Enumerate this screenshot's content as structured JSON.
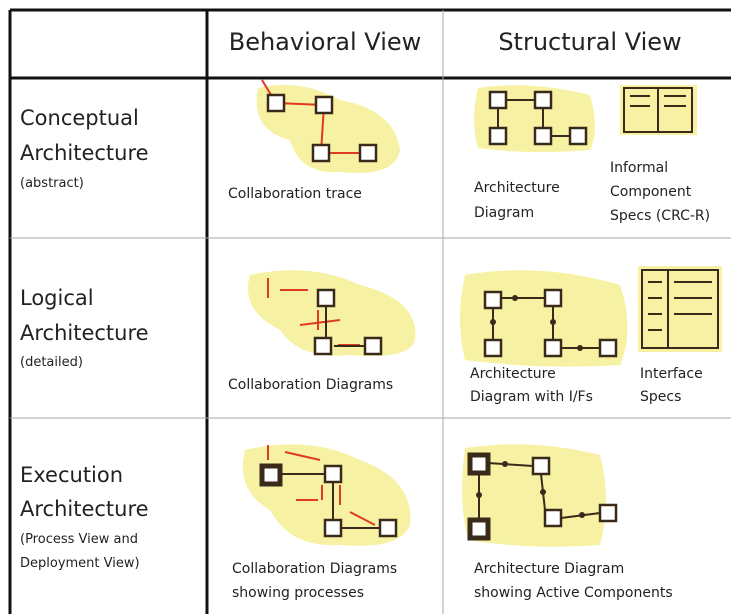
{
  "header": {
    "columns": [
      "Behavioral View",
      "Structural View"
    ]
  },
  "rows": [
    {
      "label": [
        "Conceptual",
        "Architecture"
      ],
      "note": [
        "(abstract)"
      ],
      "behavioral": [
        "Collaboration trace"
      ],
      "structural": [
        [
          "Architecture",
          "Diagram"
        ],
        [
          "Informal",
          "Component",
          "Specs (CRC-R)"
        ]
      ]
    },
    {
      "label": [
        "Logical",
        "Architecture"
      ],
      "note": [
        "(detailed)"
      ],
      "behavioral": [
        "Collaboration Diagrams"
      ],
      "structural": [
        [
          "Architecture",
          "Diagram with I/Fs"
        ],
        [
          "Interface",
          "Specs"
        ]
      ]
    },
    {
      "label": [
        "Execution",
        "Architecture"
      ],
      "note": [
        "(Process View and",
        "Deployment View)"
      ],
      "behavioral": [
        "Collaboration Diagrams",
        "showing processes"
      ],
      "structural": [
        [
          "Architecture Diagram",
          "showing Active Components"
        ]
      ]
    }
  ]
}
